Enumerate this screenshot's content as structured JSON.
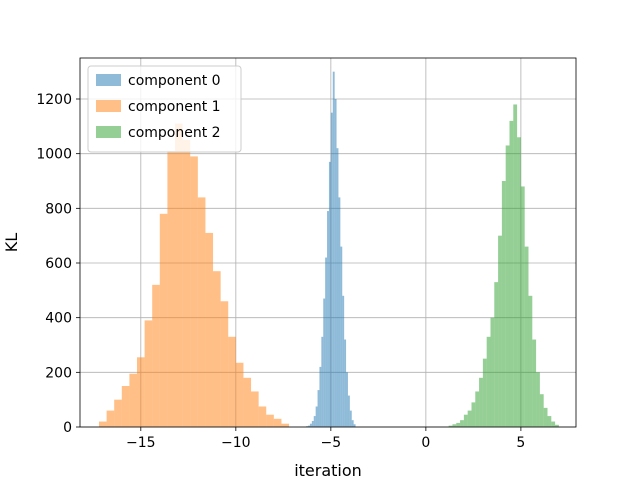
{
  "chart_data": {
    "type": "histogram",
    "title": "",
    "xlabel": "iteration",
    "ylabel": "KL",
    "xlim": [
      -18.2,
      7.9
    ],
    "ylim": [
      0,
      1350
    ],
    "x_ticks": [
      -15,
      -10,
      -5,
      0,
      5
    ],
    "x_tick_labels": [
      "−15",
      "−10",
      "−5",
      "0",
      "5"
    ],
    "y_ticks": [
      0,
      200,
      400,
      600,
      800,
      1000,
      1200
    ],
    "y_tick_labels": [
      "0",
      "200",
      "400",
      "600",
      "800",
      "1000",
      "1200"
    ],
    "grid": true,
    "legend_position": "top-left",
    "series": [
      {
        "name": "component 0",
        "color": "#1f77b4",
        "alpha": 0.5,
        "bin_width": 0.1,
        "bins": [
          [
            -6.3,
            3
          ],
          [
            -6.2,
            5
          ],
          [
            -6.1,
            12
          ],
          [
            -6.0,
            22
          ],
          [
            -5.9,
            40
          ],
          [
            -5.8,
            75
          ],
          [
            -5.7,
            135
          ],
          [
            -5.6,
            220
          ],
          [
            -5.5,
            330
          ],
          [
            -5.4,
            470
          ],
          [
            -5.3,
            620
          ],
          [
            -5.2,
            790
          ],
          [
            -5.1,
            970
          ],
          [
            -5.0,
            1150
          ],
          [
            -4.9,
            1300
          ],
          [
            -4.8,
            1200
          ],
          [
            -4.7,
            1020
          ],
          [
            -4.6,
            840
          ],
          [
            -4.5,
            660
          ],
          [
            -4.4,
            480
          ],
          [
            -4.3,
            320
          ],
          [
            -4.2,
            200
          ],
          [
            -4.1,
            115
          ],
          [
            -4.0,
            60
          ],
          [
            -3.9,
            25
          ],
          [
            -3.8,
            10
          ]
        ]
      },
      {
        "name": "component 1",
        "color": "#ff7f0e",
        "alpha": 0.5,
        "bin_width": 0.4,
        "bins": [
          [
            -17.2,
            20
          ],
          [
            -16.8,
            60
          ],
          [
            -16.4,
            100
          ],
          [
            -16.0,
            150
          ],
          [
            -15.6,
            195
          ],
          [
            -15.2,
            255
          ],
          [
            -14.8,
            390
          ],
          [
            -14.4,
            520
          ],
          [
            -14.0,
            780
          ],
          [
            -13.6,
            1010
          ],
          [
            -13.2,
            1110
          ],
          [
            -12.8,
            1050
          ],
          [
            -12.4,
            990
          ],
          [
            -12.0,
            840
          ],
          [
            -11.6,
            710
          ],
          [
            -11.2,
            570
          ],
          [
            -10.8,
            460
          ],
          [
            -10.4,
            330
          ],
          [
            -10.0,
            235
          ],
          [
            -9.6,
            180
          ],
          [
            -9.2,
            130
          ],
          [
            -8.8,
            75
          ],
          [
            -8.4,
            45
          ],
          [
            -8.0,
            30
          ],
          [
            -7.6,
            12
          ]
        ]
      },
      {
        "name": "component 2",
        "color": "#2ca02c",
        "alpha": 0.5,
        "bin_width": 0.2,
        "bins": [
          [
            1.2,
            5
          ],
          [
            1.4,
            10
          ],
          [
            1.6,
            15
          ],
          [
            1.8,
            25
          ],
          [
            2.0,
            45
          ],
          [
            2.2,
            60
          ],
          [
            2.4,
            90
          ],
          [
            2.6,
            130
          ],
          [
            2.8,
            180
          ],
          [
            3.0,
            250
          ],
          [
            3.2,
            330
          ],
          [
            3.4,
            400
          ],
          [
            3.6,
            530
          ],
          [
            3.8,
            700
          ],
          [
            4.0,
            900
          ],
          [
            4.2,
            1030
          ],
          [
            4.4,
            1120
          ],
          [
            4.6,
            1180
          ],
          [
            4.8,
            1060
          ],
          [
            5.0,
            880
          ],
          [
            5.2,
            660
          ],
          [
            5.4,
            480
          ],
          [
            5.6,
            320
          ],
          [
            5.8,
            200
          ],
          [
            6.0,
            120
          ],
          [
            6.2,
            70
          ],
          [
            6.4,
            40
          ],
          [
            6.6,
            20
          ],
          [
            6.8,
            8
          ]
        ]
      }
    ]
  }
}
